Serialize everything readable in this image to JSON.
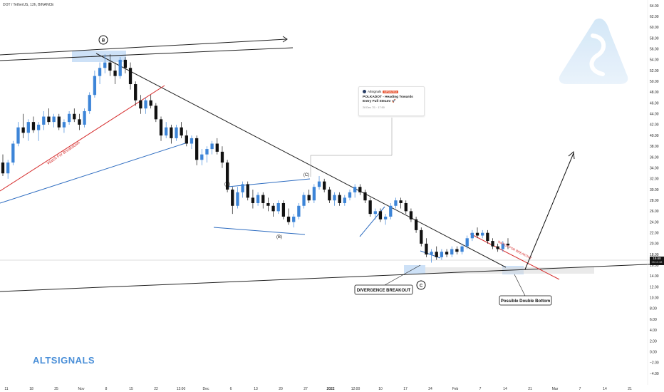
{
  "header": {
    "symbol_title": "DOT / TetherUS, 12h, BINANCE"
  },
  "brand": {
    "name": "ALTSIGNALS"
  },
  "current_price": {
    "value": "19.68",
    "timer": "05:10:38"
  },
  "news_card": {
    "author": "Altsignals",
    "badge": "UPDATED",
    "headline": "POLKADOT - Heading Towards Entry Full Steam! 🚀",
    "date": "28 Dec '21 · 17:50"
  },
  "annotations": {
    "B_major": "B",
    "A": "(A)",
    "C_minor": "(C)",
    "B_minor": "(B)",
    "C_major": "C",
    "divergence": "DIVERGENCE BREAKOUT",
    "double_bottom": "Possible Double Bottom",
    "watch_breakdown": "Watch For Breakdown",
    "watch_breakout": "WATCH FOR BREAKOUT"
  },
  "colors": {
    "up_candle": "#3d85d8",
    "down_candle": "#111111",
    "red_line": "#d62f2f",
    "blue_line": "#2d6cc0",
    "trend_line": "#222222",
    "highlight": "#b8d4f4",
    "brand": "#4a8fd8"
  },
  "chart_data": {
    "type": "candlestick",
    "title": "DOT / TetherUS, 12h, BINANCE",
    "ylim": [
      -4,
      64
    ],
    "y_ticks": [
      "64.00",
      "62.00",
      "60.00",
      "58.00",
      "56.00",
      "54.00",
      "52.00",
      "50.00",
      "48.00",
      "46.00",
      "44.00",
      "42.00",
      "40.00",
      "38.00",
      "36.00",
      "34.00",
      "32.00",
      "30.00",
      "28.00",
      "26.00",
      "24.00",
      "22.00",
      "20.00",
      "18.00",
      "16.00",
      "14.00",
      "12.00",
      "10.00",
      "8.00",
      "6.00",
      "4.00",
      "2.00",
      "0.00",
      "−2.00",
      "−4.00"
    ],
    "x_ticks": [
      "11",
      "18",
      "25",
      "Nov",
      "8",
      "15",
      "22",
      "12:00",
      "Dec",
      "6",
      "13",
      "20",
      "27",
      "2022",
      "12:00",
      "10",
      "17",
      "24",
      "Feb",
      "7",
      "14",
      "21",
      "Mar",
      "7",
      "14",
      "21"
    ],
    "last_price": 19.68,
    "candles": [
      [
        35.0,
        36.5,
        32.5,
        33.0
      ],
      [
        33.0,
        35.5,
        32.0,
        35.0
      ],
      [
        35.0,
        39.0,
        34.5,
        38.5
      ],
      [
        38.5,
        42.5,
        38.0,
        41.5
      ],
      [
        41.5,
        44.0,
        39.5,
        40.5
      ],
      [
        40.5,
        43.0,
        39.0,
        42.5
      ],
      [
        42.5,
        43.5,
        40.5,
        41.0
      ],
      [
        41.0,
        42.5,
        39.0,
        42.0
      ],
      [
        42.0,
        44.5,
        41.0,
        43.5
      ],
      [
        43.5,
        45.0,
        42.0,
        42.5
      ],
      [
        42.5,
        44.0,
        41.5,
        43.5
      ],
      [
        43.5,
        44.0,
        41.0,
        41.5
      ],
      [
        41.5,
        43.0,
        40.5,
        42.5
      ],
      [
        42.5,
        44.5,
        42.0,
        44.0
      ],
      [
        44.0,
        45.0,
        42.5,
        43.0
      ],
      [
        43.0,
        44.0,
        41.0,
        42.0
      ],
      [
        42.0,
        45.0,
        41.5,
        44.5
      ],
      [
        44.5,
        48.0,
        44.0,
        47.5
      ],
      [
        47.5,
        52.0,
        47.0,
        51.0
      ],
      [
        51.0,
        53.5,
        49.5,
        52.5
      ],
      [
        52.5,
        55.0,
        51.5,
        53.5
      ],
      [
        53.5,
        55.0,
        51.0,
        52.0
      ],
      [
        52.0,
        53.5,
        49.5,
        51.0
      ],
      [
        51.0,
        54.5,
        50.5,
        54.0
      ],
      [
        54.0,
        54.5,
        51.5,
        52.5
      ],
      [
        52.5,
        53.5,
        48.5,
        49.5
      ],
      [
        49.5,
        50.0,
        45.5,
        46.5
      ],
      [
        46.5,
        47.5,
        44.0,
        45.0
      ],
      [
        45.0,
        47.0,
        44.0,
        46.5
      ],
      [
        46.5,
        47.5,
        45.0,
        45.5
      ],
      [
        45.5,
        46.0,
        42.5,
        43.0
      ],
      [
        43.0,
        43.5,
        39.0,
        40.0
      ],
      [
        40.0,
        42.5,
        39.5,
        41.5
      ],
      [
        41.5,
        42.0,
        38.5,
        39.5
      ],
      [
        39.5,
        42.0,
        39.0,
        41.5
      ],
      [
        41.5,
        42.5,
        39.5,
        40.0
      ],
      [
        40.0,
        41.0,
        38.0,
        38.5
      ],
      [
        38.5,
        40.0,
        37.5,
        39.5
      ],
      [
        39.5,
        40.0,
        34.5,
        35.5
      ],
      [
        35.5,
        37.5,
        34.5,
        36.5
      ],
      [
        36.5,
        38.0,
        35.0,
        37.5
      ],
      [
        37.5,
        39.0,
        36.5,
        38.5
      ],
      [
        38.5,
        39.5,
        36.5,
        37.0
      ],
      [
        37.0,
        38.0,
        34.0,
        35.0
      ],
      [
        35.0,
        35.5,
        29.5,
        30.0
      ],
      [
        30.0,
        30.5,
        25.5,
        27.0
      ],
      [
        27.0,
        30.5,
        26.5,
        29.5
      ],
      [
        29.5,
        31.5,
        28.5,
        31.0
      ],
      [
        31.0,
        31.5,
        28.0,
        28.5
      ],
      [
        28.5,
        30.0,
        26.5,
        27.5
      ],
      [
        27.5,
        29.5,
        27.0,
        29.0
      ],
      [
        29.0,
        29.5,
        26.5,
        27.5
      ],
      [
        27.5,
        28.5,
        26.0,
        27.0
      ],
      [
        27.0,
        27.5,
        25.0,
        26.0
      ],
      [
        26.0,
        28.0,
        25.5,
        27.5
      ],
      [
        27.5,
        28.0,
        24.5,
        25.0
      ],
      [
        25.0,
        26.5,
        23.5,
        24.0
      ],
      [
        24.0,
        25.5,
        23.0,
        25.0
      ],
      [
        25.0,
        27.5,
        24.5,
        27.0
      ],
      [
        27.0,
        29.5,
        26.5,
        29.0
      ],
      [
        29.0,
        30.0,
        27.5,
        28.0
      ],
      [
        28.0,
        31.0,
        27.5,
        30.5
      ],
      [
        30.5,
        32.5,
        30.0,
        31.5
      ],
      [
        31.5,
        32.0,
        29.5,
        30.0
      ],
      [
        30.0,
        30.5,
        27.5,
        28.0
      ],
      [
        28.0,
        29.5,
        27.0,
        29.0
      ],
      [
        29.0,
        29.5,
        27.0,
        27.5
      ],
      [
        27.5,
        29.0,
        27.0,
        28.5
      ],
      [
        28.5,
        30.0,
        28.0,
        29.5
      ],
      [
        29.5,
        31.0,
        28.5,
        30.5
      ],
      [
        30.5,
        31.0,
        29.0,
        29.5
      ],
      [
        29.5,
        30.0,
        27.5,
        28.0
      ],
      [
        28.0,
        28.5,
        25.0,
        25.5
      ],
      [
        25.5,
        26.5,
        24.5,
        26.0
      ],
      [
        26.0,
        26.5,
        24.0,
        24.5
      ],
      [
        24.5,
        25.5,
        23.5,
        25.0
      ],
      [
        25.0,
        27.5,
        24.5,
        27.0
      ],
      [
        27.0,
        28.5,
        26.5,
        28.0
      ],
      [
        28.0,
        28.5,
        26.5,
        27.5
      ],
      [
        27.5,
        28.0,
        25.5,
        26.0
      ],
      [
        26.0,
        26.5,
        24.0,
        24.5
      ],
      [
        24.5,
        25.0,
        22.0,
        22.5
      ],
      [
        22.5,
        23.0,
        19.5,
        20.0
      ],
      [
        20.0,
        21.0,
        17.5,
        18.0
      ],
      [
        18.0,
        19.0,
        16.5,
        18.5
      ],
      [
        18.5,
        19.5,
        17.0,
        17.5
      ],
      [
        17.5,
        19.0,
        17.0,
        18.5
      ],
      [
        18.5,
        19.0,
        17.5,
        18.0
      ],
      [
        18.0,
        19.5,
        17.5,
        19.0
      ],
      [
        19.0,
        19.5,
        18.0,
        18.5
      ],
      [
        18.5,
        20.0,
        18.0,
        19.5
      ],
      [
        19.5,
        21.5,
        19.0,
        21.0
      ],
      [
        21.0,
        22.5,
        20.5,
        22.0
      ],
      [
        22.0,
        23.0,
        21.0,
        21.5
      ],
      [
        21.5,
        22.5,
        21.0,
        22.0
      ],
      [
        22.0,
        22.5,
        20.0,
        20.5
      ],
      [
        20.5,
        21.0,
        19.0,
        19.5
      ],
      [
        19.5,
        20.0,
        18.5,
        19.0
      ],
      [
        19.0,
        20.5,
        18.5,
        20.0
      ],
      [
        20.0,
        21.0,
        19.0,
        19.68
      ]
    ]
  }
}
